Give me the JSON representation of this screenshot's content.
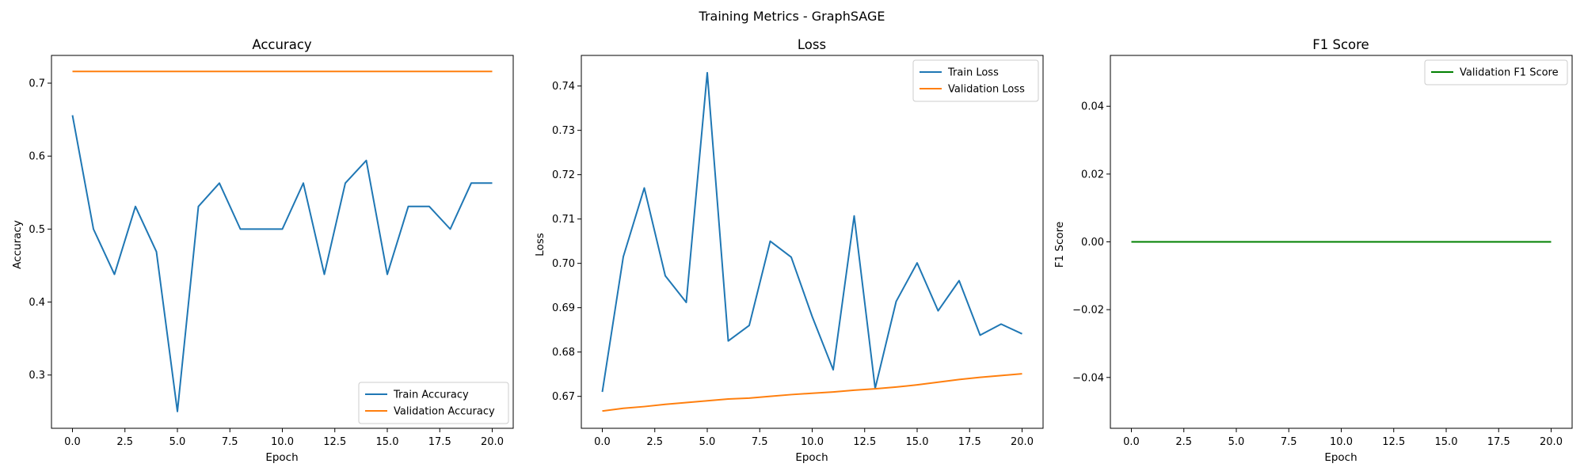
{
  "suptitle": "Training Metrics - GraphSAGE",
  "chart_data": [
    {
      "type": "line",
      "title": "Accuracy",
      "xlabel": "Epoch",
      "ylabel": "Accuracy",
      "xlim": [
        -1,
        21
      ],
      "ylim": [
        0.227,
        0.738
      ],
      "xticks": [
        0.0,
        2.5,
        5.0,
        7.5,
        10.0,
        12.5,
        15.0,
        17.5,
        20.0
      ],
      "xtick_labels": [
        "0.0",
        "2.5",
        "5.0",
        "7.5",
        "10.0",
        "12.5",
        "15.0",
        "17.5",
        "20.0"
      ],
      "yticks": [
        0.3,
        0.4,
        0.5,
        0.6,
        0.7
      ],
      "ytick_labels": [
        "0.3",
        "0.4",
        "0.5",
        "0.6",
        "0.7"
      ],
      "legend_loc": "lower right",
      "x": [
        0,
        1,
        2,
        3,
        4,
        5,
        6,
        7,
        8,
        9,
        10,
        11,
        12,
        13,
        14,
        15,
        16,
        17,
        18,
        19,
        20
      ],
      "series": [
        {
          "name": "Train Accuracy",
          "color": "#1f77b4",
          "values": [
            0.656,
            0.5,
            0.438,
            0.531,
            0.469,
            0.25,
            0.531,
            0.563,
            0.5,
            0.5,
            0.5,
            0.563,
            0.438,
            0.563,
            0.594,
            0.438,
            0.531,
            0.531,
            0.5,
            0.563,
            0.563
          ]
        },
        {
          "name": "Validation Accuracy",
          "color": "#ff7f0e",
          "values": [
            0.716,
            0.716,
            0.716,
            0.716,
            0.716,
            0.716,
            0.716,
            0.716,
            0.716,
            0.716,
            0.716,
            0.716,
            0.716,
            0.716,
            0.716,
            0.716,
            0.716,
            0.716,
            0.716,
            0.716,
            0.716
          ]
        }
      ]
    },
    {
      "type": "line",
      "title": "Loss",
      "xlabel": "Epoch",
      "ylabel": "Loss",
      "xlim": [
        -1,
        21
      ],
      "ylim": [
        0.6628,
        0.7469
      ],
      "xticks": [
        0.0,
        2.5,
        5.0,
        7.5,
        10.0,
        12.5,
        15.0,
        17.5,
        20.0
      ],
      "xtick_labels": [
        "0.0",
        "2.5",
        "5.0",
        "7.5",
        "10.0",
        "12.5",
        "15.0",
        "17.5",
        "20.0"
      ],
      "yticks": [
        0.67,
        0.68,
        0.69,
        0.7,
        0.71,
        0.72,
        0.73,
        0.74
      ],
      "ytick_labels": [
        "0.67",
        "0.68",
        "0.69",
        "0.70",
        "0.71",
        "0.72",
        "0.73",
        "0.74"
      ],
      "legend_loc": "upper right",
      "x": [
        0,
        1,
        2,
        3,
        4,
        5,
        6,
        7,
        8,
        9,
        10,
        11,
        12,
        13,
        14,
        15,
        16,
        17,
        18,
        19,
        20
      ],
      "series": [
        {
          "name": "Train Loss",
          "color": "#1f77b4",
          "values": [
            0.671,
            0.7015,
            0.717,
            0.6972,
            0.6912,
            0.743,
            0.6825,
            0.686,
            0.705,
            0.7014,
            0.688,
            0.676,
            0.7107,
            0.6718,
            0.6914,
            0.7001,
            0.6893,
            0.6961,
            0.6838,
            0.6863,
            0.6841
          ]
        },
        {
          "name": "Validation Loss",
          "color": "#ff7f0e",
          "values": [
            0.6667,
            0.6673,
            0.6677,
            0.6682,
            0.6686,
            0.669,
            0.6694,
            0.6696,
            0.67,
            0.6704,
            0.6707,
            0.671,
            0.6714,
            0.6717,
            0.6721,
            0.6726,
            0.6732,
            0.6738,
            0.6743,
            0.6747,
            0.6751
          ]
        }
      ]
    },
    {
      "type": "line",
      "title": "F1 Score",
      "xlabel": "Epoch",
      "ylabel": "F1 Score",
      "xlim": [
        -1,
        21
      ],
      "ylim": [
        -0.055,
        0.055
      ],
      "xticks": [
        0.0,
        2.5,
        5.0,
        7.5,
        10.0,
        12.5,
        15.0,
        17.5,
        20.0
      ],
      "xtick_labels": [
        "0.0",
        "2.5",
        "5.0",
        "7.5",
        "10.0",
        "12.5",
        "15.0",
        "17.5",
        "20.0"
      ],
      "yticks": [
        -0.04,
        -0.02,
        0.0,
        0.02,
        0.04
      ],
      "ytick_labels": [
        "−0.04",
        "−0.02",
        "0.00",
        "0.02",
        "0.04"
      ],
      "legend_loc": "upper right",
      "x": [
        0,
        1,
        2,
        3,
        4,
        5,
        6,
        7,
        8,
        9,
        10,
        11,
        12,
        13,
        14,
        15,
        16,
        17,
        18,
        19,
        20
      ],
      "series": [
        {
          "name": "Validation F1 Score",
          "color": "#008000",
          "values": [
            0,
            0,
            0,
            0,
            0,
            0,
            0,
            0,
            0,
            0,
            0,
            0,
            0,
            0,
            0,
            0,
            0,
            0,
            0,
            0,
            0
          ]
        }
      ]
    }
  ]
}
